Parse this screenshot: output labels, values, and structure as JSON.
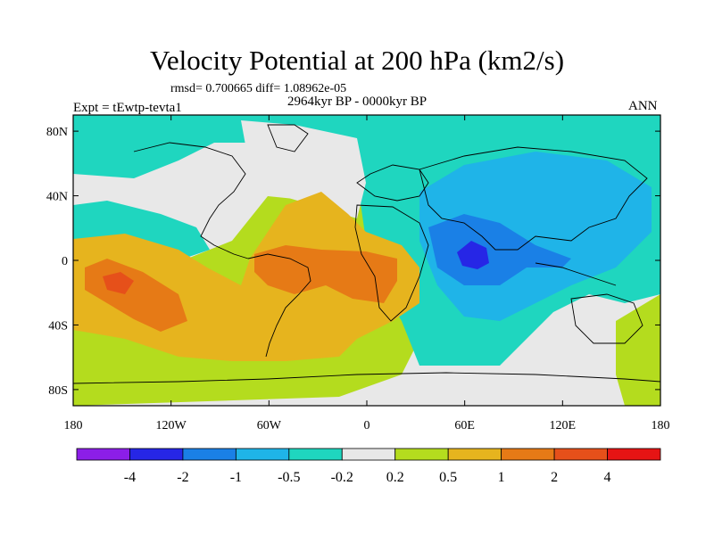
{
  "title": "Velocity Potential at 200 hPa (km2/s)",
  "stats": "rmsd= 0.700665 diff= 1.08962e-05",
  "period": "2964kyr BP - 0000kyr BP",
  "experiment": "Expt = tEwtp-tevta1",
  "season": "ANN",
  "map": {
    "projection": "cylindrical-equidistant",
    "lat_ticks": [
      "80N",
      "40N",
      "0",
      "40S",
      "80S"
    ],
    "lon_ticks": [
      "180",
      "120W",
      "60W",
      "0",
      "60E",
      "120E",
      "180"
    ],
    "lat_range": [
      -90,
      90
    ],
    "lon_range": [
      -180,
      180
    ]
  },
  "colorbar": {
    "labels": [
      "-4",
      "-2",
      "-1",
      "-0.5",
      "-0.2",
      "0.2",
      "0.5",
      "1",
      "2",
      "4"
    ],
    "colors": [
      "#8c1ee8",
      "#2626e6",
      "#1a80e6",
      "#1fb4e8",
      "#1fd6bf",
      "#e8e8e8",
      "#b4dc1e",
      "#e6b41e",
      "#e67a16",
      "#e6501a",
      "#e61414"
    ]
  },
  "colors": {
    "land_outline": "#000000",
    "frame": "#000000"
  }
}
